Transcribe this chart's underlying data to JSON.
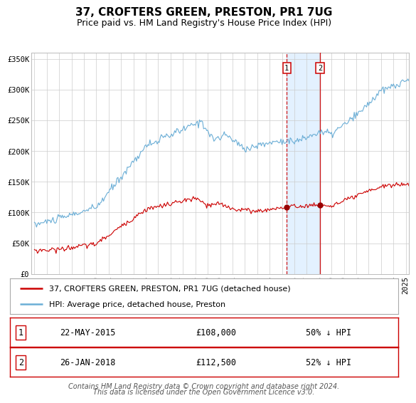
{
  "title": "37, CROFTERS GREEN, PRESTON, PR1 7UG",
  "subtitle": "Price paid vs. HM Land Registry's House Price Index (HPI)",
  "ylim": [
    0,
    360000
  ],
  "yticks": [
    0,
    50000,
    100000,
    150000,
    200000,
    250000,
    300000,
    350000
  ],
  "ytick_labels": [
    "£0",
    "£50K",
    "£100K",
    "£150K",
    "£200K",
    "£250K",
    "£300K",
    "£350K"
  ],
  "xlim_start": 1994.75,
  "xlim_end": 2025.25,
  "xticks": [
    1995,
    1996,
    1997,
    1998,
    1999,
    2000,
    2001,
    2002,
    2003,
    2004,
    2005,
    2006,
    2007,
    2008,
    2009,
    2010,
    2011,
    2012,
    2013,
    2014,
    2015,
    2016,
    2017,
    2018,
    2019,
    2020,
    2021,
    2022,
    2023,
    2024,
    2025
  ],
  "hpi_color": "#6baed6",
  "price_color": "#cc0000",
  "marker_color": "#990000",
  "grid_color": "#cccccc",
  "background_color": "#ffffff",
  "shade_color": "#ddeeff",
  "vline1_x": 2015.386,
  "vline2_x": 2018.072,
  "marker1_x": 2015.386,
  "marker1_y": 108000,
  "marker2_x": 2018.072,
  "marker2_y": 112500,
  "legend_line1": "37, CROFTERS GREEN, PRESTON, PR1 7UG (detached house)",
  "legend_line2": "HPI: Average price, detached house, Preston",
  "table_row1_num": "1",
  "table_row1_date": "22-MAY-2015",
  "table_row1_price": "£108,000",
  "table_row1_hpi": "50% ↓ HPI",
  "table_row2_num": "2",
  "table_row2_date": "26-JAN-2018",
  "table_row2_price": "£112,500",
  "table_row2_hpi": "52% ↓ HPI",
  "footer_line1": "Contains HM Land Registry data © Crown copyright and database right 2024.",
  "footer_line2": "This data is licensed under the Open Government Licence v3.0.",
  "title_fontsize": 11,
  "subtitle_fontsize": 9,
  "tick_fontsize": 7.5,
  "legend_fontsize": 8,
  "table_fontsize": 8.5,
  "footer_fontsize": 7
}
